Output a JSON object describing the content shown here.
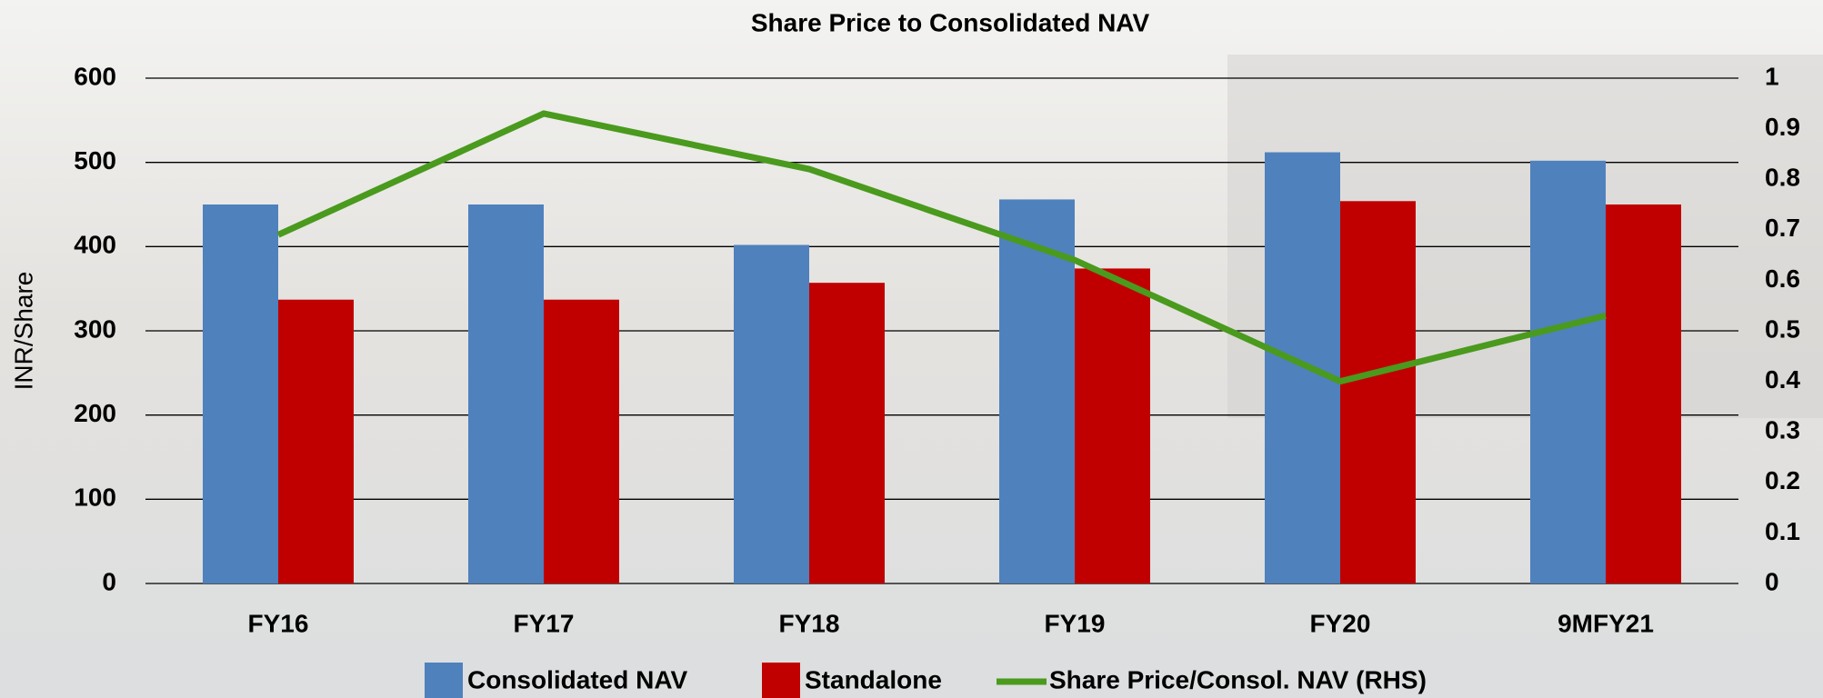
{
  "chart_data": {
    "type": "bar_line",
    "title": "Share Price to Consolidated NAV",
    "y_label": "INR/Share",
    "categories": [
      "FY16",
      "FY17",
      "FY18",
      "FY19",
      "FY20",
      "9MFY21"
    ],
    "series": [
      {
        "name": "Consolidated NAV",
        "type": "bar",
        "color": "#4f81bd",
        "values": [
          450,
          450,
          402,
          456,
          512,
          502
        ]
      },
      {
        "name": "Standalone",
        "type": "bar",
        "color": "#c00000",
        "values": [
          337,
          337,
          357,
          374,
          454,
          450
        ]
      },
      {
        "name": "Share Price/Consol. NAV (RHS)",
        "type": "line",
        "axis": "y2",
        "color": "#4a9a1e",
        "values": [
          0.69,
          0.93,
          0.82,
          0.64,
          0.4,
          0.53
        ]
      }
    ],
    "ylim": [
      0,
      600
    ],
    "yticks": [
      0,
      100,
      200,
      300,
      400,
      500,
      600
    ],
    "y2lim": [
      0,
      1
    ],
    "y2ticks": [
      0,
      0.1,
      0.2,
      0.3,
      0.4,
      0.5,
      0.6,
      0.7,
      0.8,
      0.9,
      1
    ],
    "grid": true,
    "legend": "bottom"
  }
}
